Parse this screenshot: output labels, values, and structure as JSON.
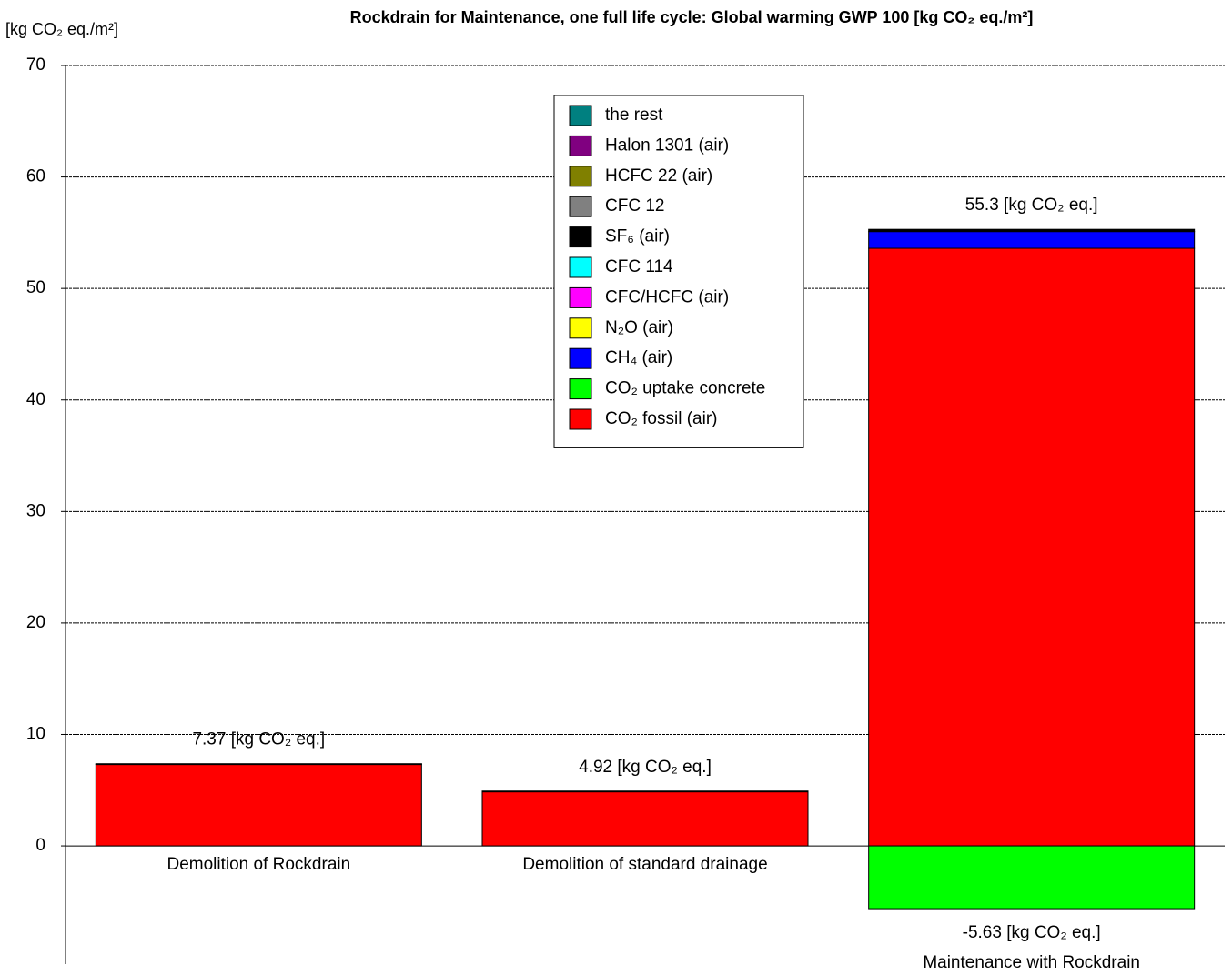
{
  "chart_data": {
    "type": "stacked_bar",
    "title": "Rockdrain for Maintenance, one full life cycle: Global warming GWP 100 [kg CO₂ eq./m²]",
    "y_label": "[kg CO₂ eq./m²]",
    "categories": [
      "Demolition of Rockdrain",
      "Demolition of standard drainage",
      "Maintenance with Rockdrain"
    ],
    "series": [
      {
        "name": "CO₂ fossil (air)",
        "color": "#ff0000",
        "values": [
          7.3,
          4.85,
          53.6
        ]
      },
      {
        "name": "CO₂ uptake concrete",
        "color": "#00ff00",
        "values": [
          0,
          0,
          -5.63
        ],
        "value_labels": [
          null,
          null,
          "-5.63 [kg CO₂ eq.]"
        ]
      },
      {
        "name": "CH₄ (air)",
        "color": "#0000ff",
        "values": [
          0.05,
          0.05,
          1.5
        ]
      },
      {
        "name": "N₂O (air)",
        "color": "#ffff00",
        "values": [
          0,
          0,
          0
        ]
      },
      {
        "name": "CFC/HCFC (air)",
        "color": "#ff00ff",
        "values": [
          0,
          0,
          0
        ]
      },
      {
        "name": "CFC 114",
        "color": "#00ffff",
        "values": [
          0,
          0,
          0
        ]
      },
      {
        "name": "SF₆ (air)",
        "color": "#000000",
        "values": [
          0.02,
          0.02,
          0.2
        ]
      },
      {
        "name": "CFC 12",
        "color": "#808080",
        "values": [
          0,
          0,
          0
        ]
      },
      {
        "name": "HCFC 22 (air)",
        "color": "#808000",
        "values": [
          0,
          0,
          0
        ]
      },
      {
        "name": "Halon 1301 (air)",
        "color": "#800080",
        "values": [
          0,
          0,
          0
        ]
      },
      {
        "name": "the rest",
        "color": "#008080",
        "values": [
          0,
          0,
          0
        ]
      }
    ],
    "totals": {
      "values": [
        7.37,
        4.92,
        55.3
      ],
      "value_labels": [
        "7.37 [kg CO₂ eq.]",
        "4.92 [kg CO₂ eq.]",
        "55.3 [kg CO₂ eq.]"
      ]
    },
    "ylim": [
      -10.6,
      70
    ],
    "yticks": [
      0,
      10,
      20,
      30,
      40,
      50,
      60,
      70
    ],
    "grid": true
  }
}
